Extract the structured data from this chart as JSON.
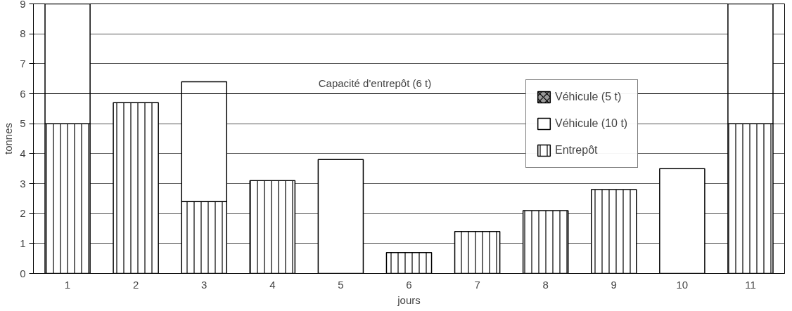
{
  "chart_data": {
    "type": "bar",
    "stacked": true,
    "xlabel": "jours",
    "ylabel": "tonnes",
    "categories": [
      "1",
      "2",
      "3",
      "4",
      "5",
      "6",
      "7",
      "8",
      "9",
      "10",
      "11"
    ],
    "series": [
      {
        "name": "Entrepôt",
        "color": "#ffffff",
        "values": [
          5,
          5.7,
          2.4,
          3.1,
          null,
          0.7,
          1.4,
          2.1,
          2.8,
          null,
          5
        ]
      },
      {
        "name": "Véhicule (10 t)",
        "color": "#ffffff",
        "values": [
          4,
          null,
          4.0,
          null,
          3.8,
          null,
          null,
          null,
          null,
          3.5,
          4
        ]
      },
      {
        "name": "Véhicule (5 t)",
        "color": "#999999",
        "values": [
          null,
          null,
          null,
          null,
          null,
          null,
          null,
          null,
          null,
          null,
          null
        ]
      }
    ],
    "ylim": [
      0,
      9
    ],
    "yticks": [
      0,
      1,
      2,
      3,
      4,
      5,
      6,
      7,
      8,
      9
    ],
    "grid": "y",
    "legend": "top right",
    "ref_lines": [
      {
        "axis": "y",
        "value": 6,
        "label": "Capacité d'entrepôt (6 t)",
        "color": "#000000"
      }
    ]
  }
}
